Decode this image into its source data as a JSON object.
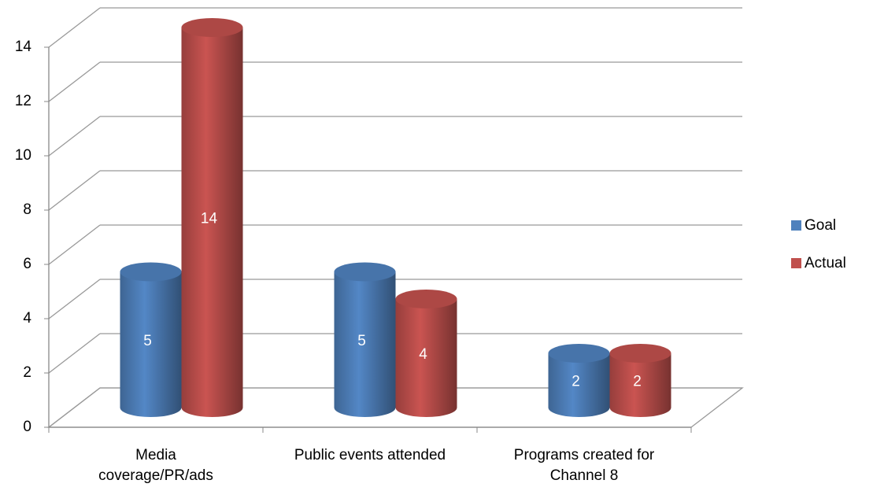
{
  "chart_data": {
    "type": "bar3d",
    "categories": [
      "Media coverage/PR/ads",
      "Public events attended",
      "Programs created for Channel 8"
    ],
    "series": [
      {
        "name": "Goal",
        "color": "#4f81bd",
        "values": [
          5,
          5,
          2
        ]
      },
      {
        "name": "Actual",
        "color": "#c0504d",
        "values": [
          14,
          4,
          2
        ]
      }
    ],
    "ylim": [
      0,
      14
    ],
    "yticks": [
      0,
      2,
      4,
      6,
      8,
      10,
      12,
      14
    ],
    "grid": true,
    "legend": "right"
  }
}
